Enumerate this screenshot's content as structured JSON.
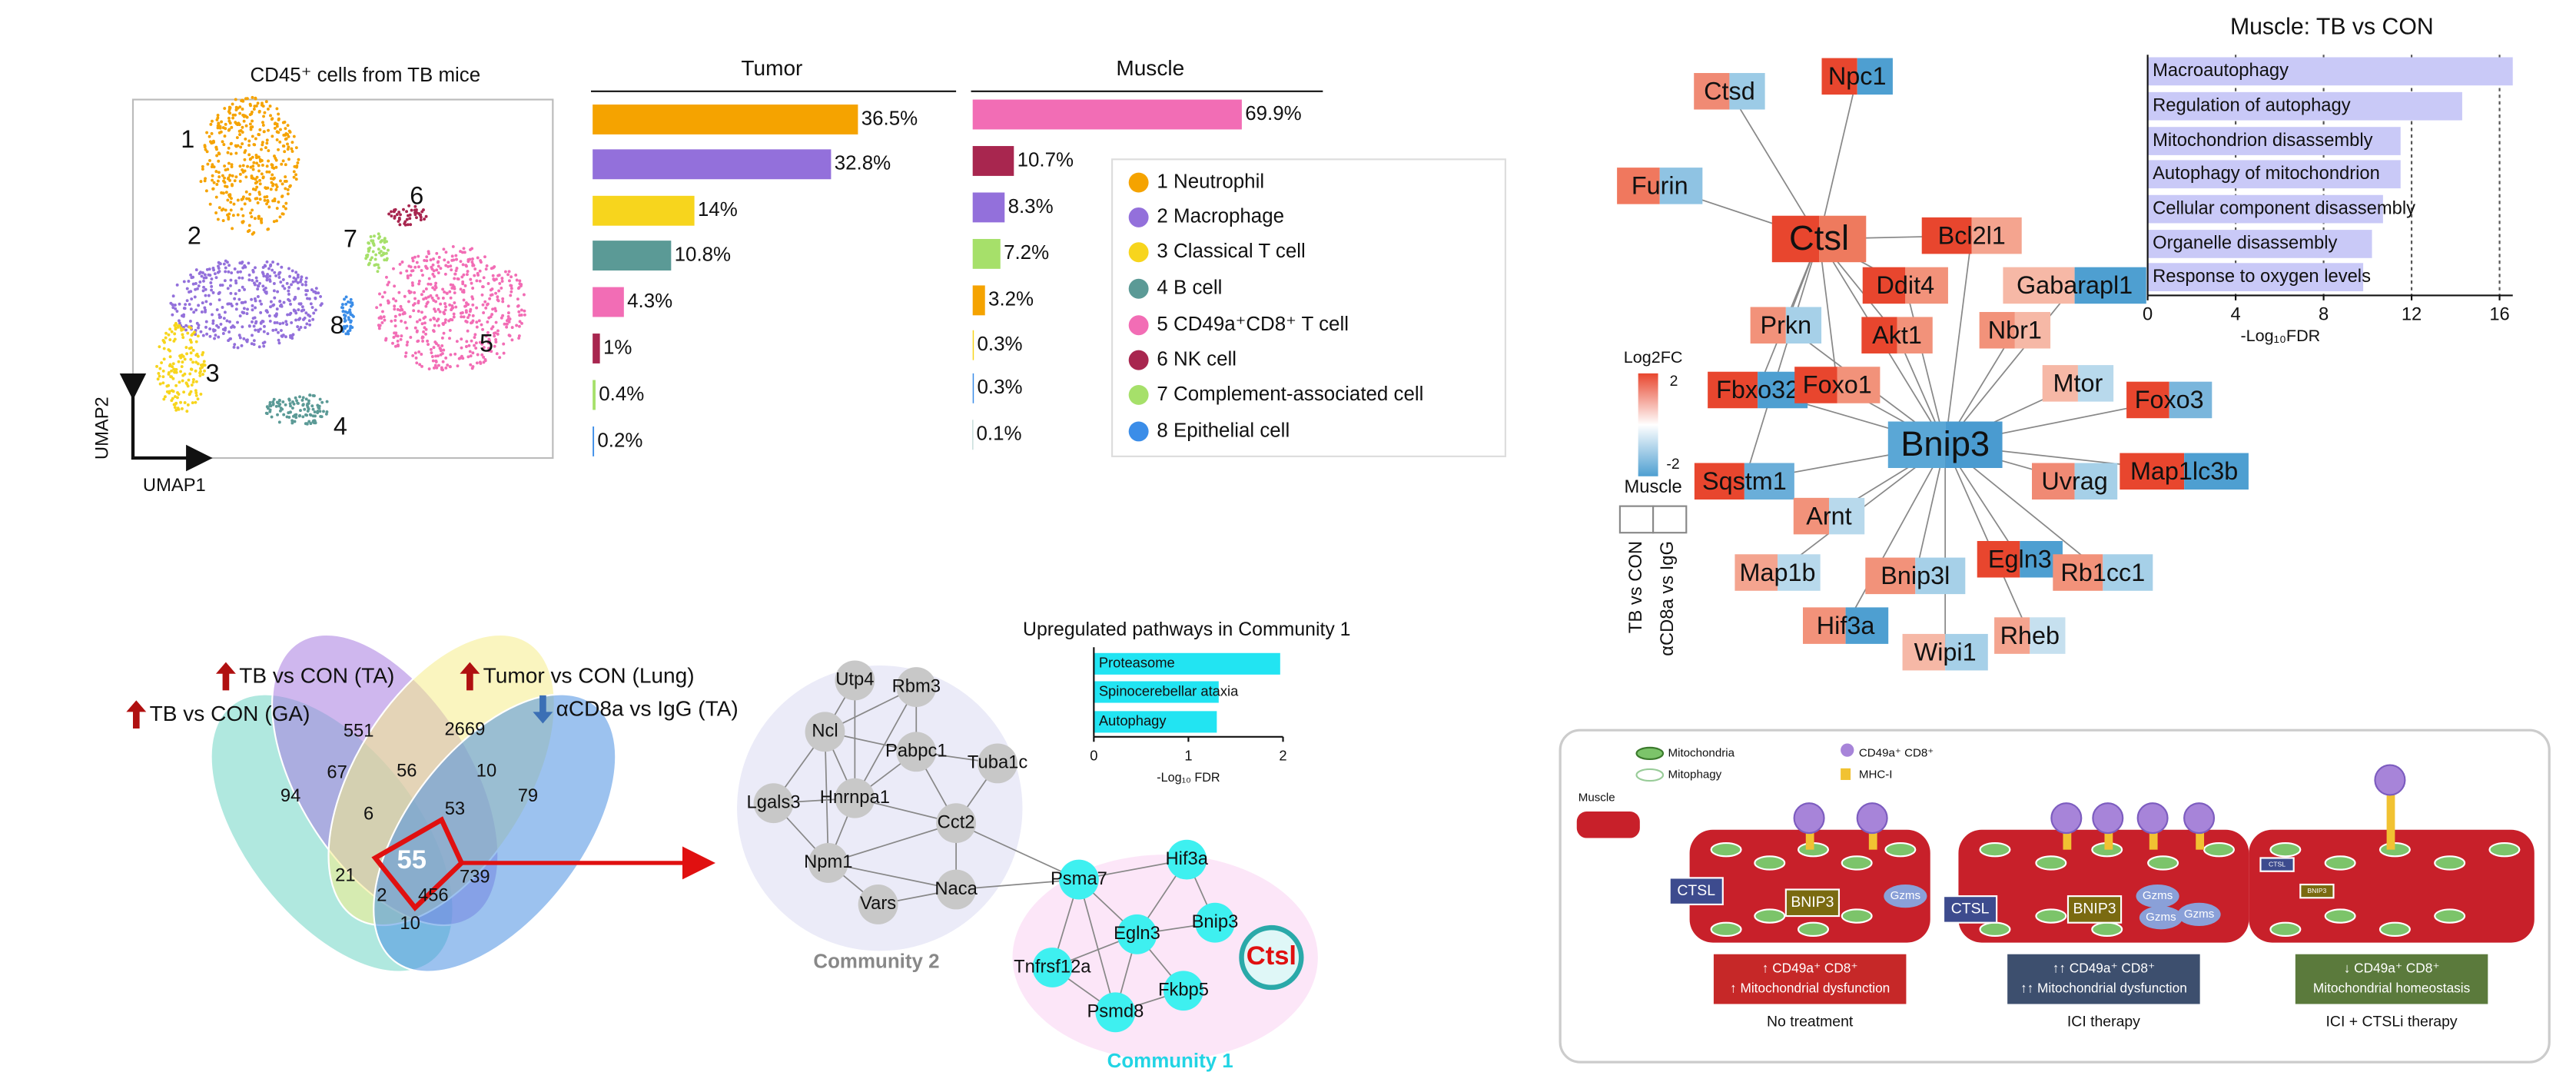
{
  "umap": {
    "title": "CD45⁺ cells from TB mice",
    "x_label": "UMAP1",
    "y_label": "UMAP2",
    "clusters": [
      "1",
      "2",
      "3",
      "4",
      "5",
      "6",
      "7",
      "8"
    ]
  },
  "chart_data": [
    {
      "type": "bar",
      "orientation": "horizontal",
      "title": "Tumor",
      "categories": [
        "1 Neutrophil",
        "2 Macrophage",
        "3 Classical T cell",
        "4 B cell",
        "5 CD49a⁺CD8⁺ T cell",
        "6 NK cell",
        "7 Complement-associated cell",
        "8 Epithelial cell"
      ],
      "colors": [
        "#f5a300",
        "#9370db",
        "#f7d51d",
        "#5b9a96",
        "#f26db5",
        "#a8264f",
        "#a6e06a",
        "#3b8de8"
      ],
      "values": [
        36.5,
        32.8,
        14,
        10.8,
        4.3,
        1,
        0.4,
        0.2
      ],
      "value_labels": [
        "36.5%",
        "32.8%",
        "14%",
        "10.8%",
        "4.3%",
        "1%",
        "0.4%",
        "0.2%"
      ]
    },
    {
      "type": "bar",
      "orientation": "horizontal",
      "title": "Muscle",
      "colors": [
        "#f26db5",
        "#a8264f",
        "#9370db",
        "#a6e06a",
        "#f5a300",
        "#f7d51d",
        "#3b8de8",
        "#5b9a96"
      ],
      "values": [
        69.9,
        10.7,
        8.3,
        7.2,
        3.2,
        0.3,
        0.3,
        0.1
      ],
      "value_labels": [
        "69.9%",
        "10.7%",
        "8.3%",
        "7.2%",
        "3.2%",
        "0.3%",
        "0.3%",
        "0.1%"
      ]
    },
    {
      "type": "bar",
      "orientation": "horizontal",
      "title": "Muscle: TB vs CON",
      "categories": [
        "Macroautophagy",
        "Regulation of autophagy",
        "Mitochondrion disassembly",
        "Autophagy of mitochondrion",
        "Cellular component disassembly",
        "Organelle disassembly",
        "Response to oxygen levels"
      ],
      "values": [
        16.6,
        14.3,
        11.5,
        11.5,
        10.7,
        10.2,
        9.8
      ],
      "color": "#c9c9f7",
      "xlim": [
        0,
        16.6
      ],
      "xticks": [
        0,
        4,
        8,
        12,
        16
      ],
      "xlabel": "-Log₁₀FDR",
      "grid": true
    },
    {
      "type": "bar",
      "orientation": "horizontal",
      "title": "Upregulated pathways in Community 1",
      "categories": [
        "Proteasome",
        "Spinocerebellar ataxia",
        "Autophagy"
      ],
      "values": [
        1.97,
        1.32,
        1.3
      ],
      "color": "#22e4f2",
      "xlim": [
        0,
        2
      ],
      "xticks": [
        0,
        1,
        2
      ],
      "xlabel": "-Log₁₀ FDR",
      "grid": false
    }
  ],
  "venn": {
    "sets": [
      "TB vs CON (GA)",
      "TB vs CON (TA)",
      "Tumor vs CON (Lung)",
      "αCD8a vs IgG (TA)"
    ],
    "set_colors": [
      "#6fd6c4",
      "#a77be0",
      "#f5ec8a",
      "#4a90e2"
    ],
    "counts": [
      94,
      551,
      2669,
      79,
      67,
      56,
      10,
      6,
      53,
      21,
      55,
      739,
      2,
      456,
      10
    ]
  },
  "communities": [
    {
      "name": "Community 2",
      "nodes": [
        "Utp4",
        "Rbm3",
        "Ncl",
        "Pabpc1",
        "Tuba1c",
        "Hnrnpa1",
        "Lgals3",
        "Cct2",
        "Npm1",
        "Naca",
        "Vars"
      ]
    },
    {
      "name": "Community 1",
      "nodes": [
        "Psma7",
        "Hif3a",
        "Bnip3",
        "Egln3",
        "Tnfrsf12a",
        "Fkbp5",
        "Psmd8",
        "Ctsl"
      ]
    }
  ],
  "gene_network": {
    "legend_title": "Log2FC",
    "legend_ticks": [
      2,
      -2
    ],
    "high_color": "#e8462e",
    "low_color": "#4e9fd1",
    "column_title": "Muscle",
    "columns": [
      "TB vs CON",
      "αCD8a vs IgG"
    ],
    "nodes": [
      {
        "label": "Ctsl",
        "colors": [
          "#e8462e",
          "#ee7a5e"
        ]
      },
      {
        "label": "Bnip3",
        "colors": [
          "#5aa7d6",
          "#4a9bd0"
        ]
      },
      {
        "label": "Ctsd",
        "colors": [
          "#f08a74",
          "#9ccbe6"
        ]
      },
      {
        "label": "Npc1",
        "colors": [
          "#e8462e",
          "#4e9fd1"
        ]
      },
      {
        "label": "Furin",
        "colors": [
          "#f0785e",
          "#8fc3e3"
        ]
      },
      {
        "label": "Bcl2l1",
        "colors": [
          "#e8462e",
          "#f4a48f"
        ]
      },
      {
        "label": "Ddit4",
        "colors": [
          "#e8462e",
          "#f2927a"
        ]
      },
      {
        "label": "Gabarapl1",
        "colors": [
          "#f6b8a6",
          "#4e9fd1"
        ]
      },
      {
        "label": "Prkn",
        "colors": [
          "#f2927a",
          "#a6d0e8"
        ]
      },
      {
        "label": "Akt1",
        "colors": [
          "#e8462e",
          "#f2927a"
        ]
      },
      {
        "label": "Nbr1",
        "colors": [
          "#f2927a",
          "#f6b8a6"
        ]
      },
      {
        "label": "Fbxo32",
        "colors": [
          "#e8462e",
          "#4e9fd1"
        ]
      },
      {
        "label": "Foxo1",
        "colors": [
          "#e8462e",
          "#f2927a"
        ]
      },
      {
        "label": "Mtor",
        "colors": [
          "#f6b8a6",
          "#b8d9ec"
        ]
      },
      {
        "label": "Foxo3",
        "colors": [
          "#e8462e",
          "#7ab6dc"
        ]
      },
      {
        "label": "Sqstm1",
        "colors": [
          "#e8462e",
          "#6aaed9"
        ]
      },
      {
        "label": "Uvrag",
        "colors": [
          "#f08a74",
          "#a6d0e8"
        ]
      },
      {
        "label": "Map1lc3b",
        "colors": [
          "#e8462e",
          "#4e9fd1"
        ]
      },
      {
        "label": "Arnt",
        "colors": [
          "#f2927a",
          "#b8d9ec"
        ]
      },
      {
        "label": "Map1b",
        "colors": [
          "#f4a48f",
          "#b8d9ec"
        ]
      },
      {
        "label": "Bnip3l",
        "colors": [
          "#f2927a",
          "#a6d0e8"
        ]
      },
      {
        "label": "Egln3",
        "colors": [
          "#e8462e",
          "#4e9fd1"
        ]
      },
      {
        "label": "Rb1cc1",
        "colors": [
          "#f2927a",
          "#a6d0e8"
        ]
      },
      {
        "label": "Hif3a",
        "colors": [
          "#f2927a",
          "#4e9fd1"
        ]
      },
      {
        "label": "Rheb",
        "colors": [
          "#f4a48f",
          "#c6e0ef"
        ]
      },
      {
        "label": "Wipi1",
        "colors": [
          "#f6b8a6",
          "#a6d0e8"
        ]
      }
    ]
  },
  "schematic": {
    "legend": [
      "Mitochondria",
      "Mitophagy",
      "CD49a⁺ CD8⁺",
      "MHC-I"
    ],
    "tissue": "Muscle",
    "panels": [
      {
        "labels": [
          "CTSL",
          "BNIP3",
          "Gzms"
        ],
        "status": [
          "↑ CD49a⁺ CD8⁺",
          "↑ Mitochondrial dysfunction"
        ],
        "status_color": "#c62828",
        "caption": "No treatment"
      },
      {
        "labels": [
          "CTSL",
          "BNIP3",
          "Gzms",
          "Gzms",
          "Gzms"
        ],
        "status": [
          "↑↑ CD49a⁺ CD8⁺",
          "↑↑ Mitochondrial dysfunction"
        ],
        "status_color": "#3d4f6e",
        "caption": "ICI therapy"
      },
      {
        "labels": [
          "CTSL",
          "BNIP3"
        ],
        "status": [
          "↓ CD49a⁺ CD8⁺",
          "Mitochondrial homeostasis"
        ],
        "status_color": "#5b7a3c",
        "caption": "ICI + CTSLi therapy"
      }
    ]
  }
}
